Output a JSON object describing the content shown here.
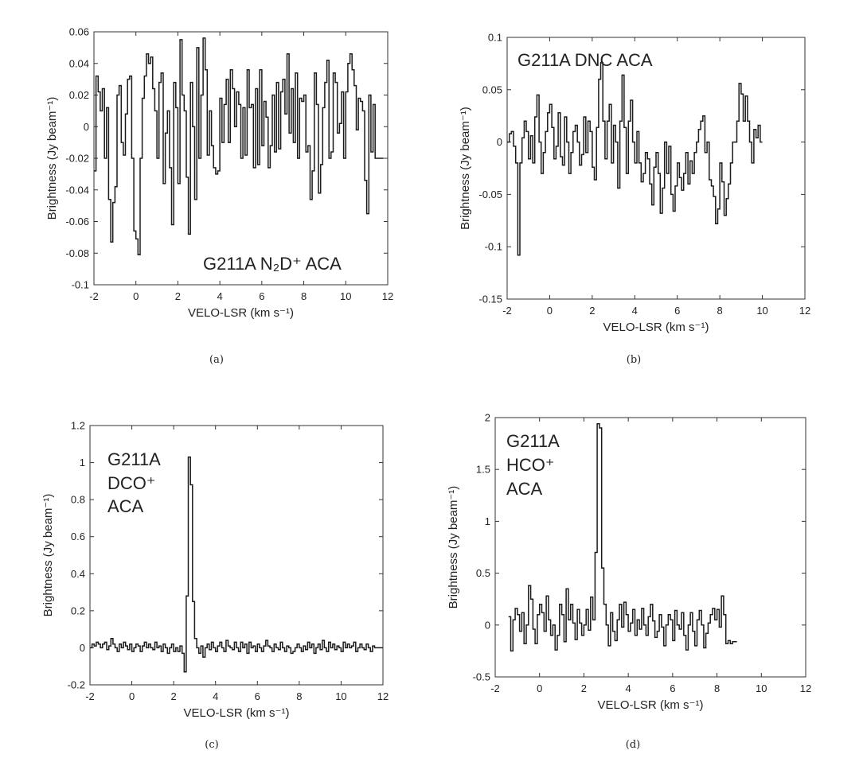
{
  "chart_data": [
    {
      "type": "line",
      "title": "",
      "annotation": "G211A N₂D⁺   ACA",
      "caption": "(a)",
      "xlabel": "VELO-LSR (km s⁻¹)",
      "ylabel": "Brightness (Jy beam⁻¹)",
      "xlim": [
        -2,
        12
      ],
      "ylim": [
        -0.1,
        0.06
      ],
      "xticks": [
        -2,
        0,
        2,
        4,
        6,
        8,
        10,
        12
      ],
      "yticks": [
        -0.1,
        -0.08,
        -0.06,
        -0.04,
        -0.02,
        0,
        0.02,
        0.04,
        0.06
      ],
      "xtick_labels": [
        "-2",
        "0",
        "2",
        "4",
        "6",
        "8",
        "10",
        "12"
      ],
      "ytick_labels": [
        "-0.1",
        "-0.08",
        "-0.06",
        "-0.04",
        "-0.02",
        "0",
        "0.02",
        "0.04",
        "0.06"
      ],
      "series": [
        {
          "name": "G211A N2D+ ACA",
          "x_start": -2,
          "x_step": 0.1,
          "values": [
            -0.028,
            0.032,
            0.022,
            0.01,
            0.024,
            -0.02,
            0.012,
            -0.046,
            -0.073,
            -0.048,
            -0.038,
            0.02,
            0.026,
            -0.01,
            -0.018,
            0.008,
            0.03,
            0.032,
            -0.02,
            -0.066,
            -0.071,
            -0.081,
            -0.02,
            0.018,
            0.032,
            0.046,
            0.04,
            0.044,
            0.024,
            0.01,
            -0.02,
            0.028,
            0.034,
            -0.036,
            -0.004,
            0.01,
            -0.026,
            -0.062,
            0.028,
            0.012,
            -0.036,
            0.055,
            0.02,
            0.01,
            -0.032,
            -0.068,
            0.028,
            0.0,
            -0.046,
            0.05,
            -0.02,
            0.02,
            0.056,
            0.036,
            -0.018,
            0.01,
            -0.012,
            -0.026,
            -0.03,
            -0.028,
            0.018,
            -0.01,
            0.014,
            0.03,
            -0.01,
            0.036,
            0.024,
            0.0,
            0.022,
            0.014,
            -0.02,
            0.012,
            -0.018,
            0.036,
            0.012,
            0.014,
            -0.026,
            0.024,
            -0.024,
            0.036,
            -0.012,
            0.016,
            0.006,
            -0.026,
            -0.012,
            0.02,
            -0.016,
            0.028,
            -0.014,
            0.022,
            0.03,
            0.008,
            0.046,
            -0.004,
            0.024,
            -0.01,
            0.034,
            -0.02,
            0.018,
            0.016,
            0.02,
            -0.016,
            -0.012,
            -0.046,
            -0.028,
            0.034,
            0.014,
            -0.042,
            -0.024,
            0.012,
            0.028,
            0.042,
            -0.02,
            -0.016,
            0.034,
            0.028,
            -0.004,
            0.002,
            0.022,
            -0.02,
            0.022,
            0.04,
            0.046,
            0.036,
            0.026,
            -0.002,
            0.018,
            0.016,
            0.01,
            -0.034,
            -0.055,
            0.02,
            -0.016,
            0.014,
            -0.02,
            -0.02,
            -0.02,
            -0.02
          ]
        }
      ]
    },
    {
      "type": "line",
      "title": "",
      "annotation": "G211A DNC ACA",
      "caption": "(b)",
      "xlabel": "VELO-LSR (km s⁻¹)",
      "ylabel": "Brightness (Jy beam⁻¹)",
      "xlim": [
        -2,
        12
      ],
      "ylim": [
        -0.15,
        0.1
      ],
      "xticks": [
        -2,
        0,
        2,
        4,
        6,
        8,
        10,
        12
      ],
      "yticks": [
        -0.15,
        -0.1,
        -0.05,
        0,
        0.05,
        0.1
      ],
      "xtick_labels": [
        "-2",
        "0",
        "2",
        "4",
        "6",
        "8",
        "10",
        "12"
      ],
      "ytick_labels": [
        "-0.15",
        "-0.1",
        "-0.05",
        "0",
        "0.05",
        "0.1"
      ],
      "series": [
        {
          "name": "G211A DNC ACA",
          "x_start": -2,
          "x_step": 0.1,
          "values": [
            0.0,
            0.008,
            0.01,
            -0.004,
            -0.02,
            -0.108,
            -0.02,
            0.004,
            0.02,
            0.01,
            -0.016,
            0.006,
            -0.02,
            0.024,
            0.045,
            0.0,
            -0.03,
            -0.01,
            0.01,
            0.028,
            0.036,
            0.014,
            -0.016,
            -0.004,
            0.028,
            -0.014,
            -0.022,
            0.024,
            0.0,
            -0.03,
            -0.01,
            0.01,
            0.016,
            0.0,
            -0.022,
            -0.012,
            0.024,
            -0.01,
            0.02,
            0.01,
            -0.024,
            -0.036,
            0.014,
            0.06,
            0.076,
            0.02,
            -0.016,
            0.02,
            0.036,
            -0.02,
            0.016,
            0.0,
            -0.044,
            0.02,
            0.064,
            0.014,
            -0.03,
            0.02,
            0.04,
            0.0,
            -0.02,
            0.01,
            -0.02,
            -0.038,
            -0.03,
            -0.01,
            -0.016,
            -0.04,
            -0.06,
            -0.024,
            -0.01,
            -0.03,
            -0.068,
            -0.044,
            0.0,
            -0.03,
            -0.004,
            -0.05,
            -0.066,
            -0.042,
            -0.02,
            -0.034,
            -0.046,
            -0.03,
            -0.01,
            -0.04,
            -0.018,
            -0.03,
            -0.01,
            0.0,
            0.012,
            0.02,
            0.025,
            -0.01,
            0.0,
            -0.036,
            -0.042,
            -0.052,
            -0.078,
            -0.064,
            -0.02,
            -0.038,
            -0.07,
            -0.054,
            -0.04,
            -0.02,
            0.0,
            0.0,
            0.02,
            0.056,
            0.046,
            0.02,
            0.044,
            0.02,
            0.0,
            -0.02,
            0.012,
            0.004,
            0.016,
            0.0
          ]
        }
      ]
    },
    {
      "type": "line",
      "title": "",
      "annotation": [
        "G211A",
        "DCO⁺",
        "ACA"
      ],
      "caption": "(c)",
      "xlabel": "VELO-LSR (km s⁻¹)",
      "ylabel": "Brightness (Jy beam⁻¹)",
      "xlim": [
        -2,
        12
      ],
      "ylim": [
        -0.2,
        1.2
      ],
      "xticks": [
        -2,
        0,
        2,
        4,
        6,
        8,
        10,
        12
      ],
      "yticks": [
        -0.2,
        0,
        0.2,
        0.4,
        0.6,
        0.8,
        1,
        1.2
      ],
      "xtick_labels": [
        "-2",
        "0",
        "2",
        "4",
        "6",
        "8",
        "10",
        "12"
      ],
      "ytick_labels": [
        "-0.2",
        "0",
        "0.2",
        "0.4",
        "0.6",
        "0.8",
        "1",
        "1.2"
      ],
      "series": [
        {
          "name": "G211A DCO+ ACA",
          "x_start": -2,
          "x_step": 0.1,
          "values": [
            0.0,
            0.02,
            0.01,
            0.03,
            0.02,
            0.0,
            0.02,
            0.03,
            -0.01,
            0.01,
            0.05,
            0.02,
            0.0,
            -0.02,
            0.02,
            0.0,
            0.03,
            0.01,
            -0.01,
            0.02,
            -0.02,
            0.0,
            0.02,
            0.01,
            -0.02,
            0.01,
            0.03,
            0.0,
            0.02,
            0.0,
            -0.01,
            0.03,
            0.0,
            0.01,
            -0.02,
            0.02,
            0.0,
            -0.03,
            0.0,
            0.02,
            -0.02,
            0.0,
            -0.02,
            0.01,
            -0.03,
            -0.13,
            0.28,
            1.03,
            0.88,
            0.25,
            0.05,
            0.0,
            -0.03,
            0.01,
            -0.05,
            0.0,
            0.02,
            -0.01,
            0.03,
            0.0,
            -0.02,
            0.01,
            0.03,
            0.0,
            -0.02,
            0.04,
            0.01,
            0.0,
            -0.01,
            0.03,
            0.0,
            -0.02,
            0.03,
            0.0,
            0.02,
            -0.03,
            0.03,
            0.0,
            0.01,
            -0.02,
            0.02,
            0.0,
            -0.02,
            0.01,
            0.04,
            0.01,
            0.0,
            -0.02,
            0.02,
            0.0,
            -0.01,
            0.03,
            0.0,
            -0.02,
            0.01,
            0.0,
            -0.03,
            -0.02,
            0.0,
            0.02,
            0.0,
            -0.02,
            0.01,
            -0.01,
            0.03,
            0.0,
            0.02,
            -0.03,
            0.0,
            0.02,
            -0.01,
            0.04,
            0.0,
            -0.02,
            0.03,
            0.0,
            0.02,
            -0.01,
            0.01,
            0.0,
            -0.02,
            0.03,
            0.0,
            0.02,
            0.0,
            0.01,
            0.03,
            -0.02,
            0.0,
            0.02,
            0.0,
            -0.01,
            0.02,
            0.0,
            -0.02,
            0.01,
            0.0,
            0.0,
            0.0,
            0.0
          ]
        }
      ]
    },
    {
      "type": "line",
      "title": "",
      "annotation": [
        "G211A",
        "HCO⁺",
        "ACA"
      ],
      "caption": "(d)",
      "xlabel": "VELO-LSR (km s⁻¹)",
      "ylabel": "Brightness (Jy beam⁻¹)",
      "xlim": [
        -2,
        12
      ],
      "ylim": [
        -0.5,
        2
      ],
      "xticks": [
        -2,
        0,
        2,
        4,
        6,
        8,
        10,
        12
      ],
      "yticks": [
        -0.5,
        0,
        0.5,
        1,
        1.5,
        2
      ],
      "xtick_labels": [
        "-2",
        "0",
        "2",
        "4",
        "6",
        "8",
        "10",
        "12"
      ],
      "ytick_labels": [
        "-0.5",
        "0",
        "0.5",
        "1",
        "1.5",
        "2"
      ],
      "series": [
        {
          "name": "G211A HCO+ ACA",
          "x_start": -1.4,
          "x_step": 0.1,
          "values": [
            0.08,
            -0.25,
            0.05,
            0.16,
            0.1,
            -0.06,
            0.12,
            -0.18,
            0.0,
            0.38,
            0.25,
            -0.04,
            -0.18,
            0.1,
            0.2,
            0.12,
            -0.06,
            0.28,
            0.05,
            -0.1,
            0.0,
            -0.24,
            -0.1,
            0.2,
            0.1,
            -0.16,
            0.35,
            0.05,
            0.2,
            0.02,
            -0.14,
            0.15,
            0.02,
            -0.1,
            0.0,
            0.15,
            -0.05,
            0.27,
            0.05,
            0.7,
            1.94,
            1.9,
            0.55,
            0.2,
            0.0,
            -0.2,
            0.12,
            -0.06,
            -0.15,
            0.05,
            0.2,
            -0.02,
            0.22,
            0.1,
            -0.06,
            0.02,
            0.15,
            -0.1,
            0.05,
            -0.04,
            0.16,
            0.0,
            -0.1,
            0.08,
            0.2,
            0.04,
            -0.12,
            -0.06,
            0.1,
            -0.02,
            -0.2,
            0.0,
            0.1,
            0.05,
            -0.15,
            0.14,
            0.0,
            -0.04,
            0.12,
            -0.1,
            -0.24,
            0.0,
            0.12,
            -0.06,
            -0.2,
            0.05,
            0.14,
            0.0,
            -0.22,
            -0.08,
            0.02,
            0.1,
            0.16,
            0.05,
            0.15,
            -0.02,
            0.28,
            0.1,
            -0.18,
            -0.15,
            -0.18,
            -0.16,
            -0.16
          ]
        }
      ]
    }
  ]
}
